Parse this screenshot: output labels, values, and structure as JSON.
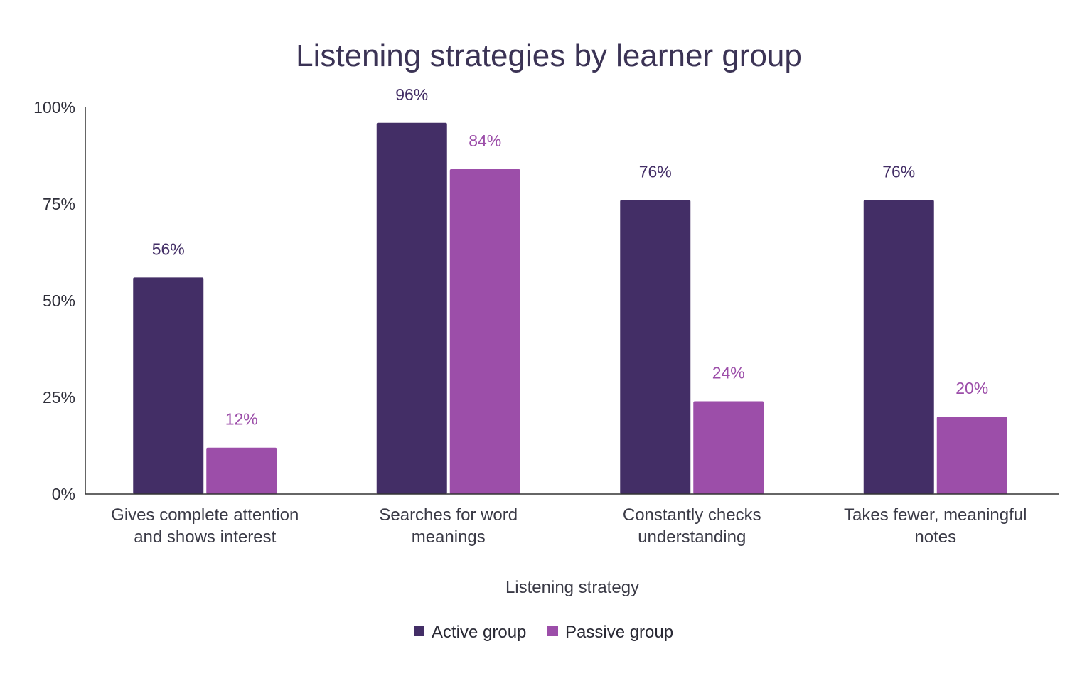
{
  "chart_data": {
    "type": "bar",
    "title": "Listening strategies by learner group",
    "xlabel": "Listening strategy",
    "ylabel": "",
    "ylim": [
      0,
      100
    ],
    "yticks": [
      "0%",
      "25%",
      "50%",
      "75%",
      "100%"
    ],
    "ytick_values": [
      0,
      25,
      50,
      75,
      100
    ],
    "categories": [
      [
        "Gives complete attention",
        "and shows interest"
      ],
      [
        "Searches for word",
        "meanings"
      ],
      [
        "Constantly checks",
        "understanding"
      ],
      [
        "Takes fewer, meaningful",
        "notes"
      ]
    ],
    "series": [
      {
        "name": "Active group",
        "color": "#432e66",
        "values": [
          56,
          96,
          76,
          76
        ],
        "labels": [
          "56%",
          "96%",
          "76%",
          "76%"
        ]
      },
      {
        "name": "Passive group",
        "color": "#9c4ea9",
        "values": [
          12,
          84,
          24,
          20
        ],
        "labels": [
          "12%",
          "84%",
          "24%",
          "20%"
        ]
      }
    ],
    "grid": false,
    "legend_position": "bottom"
  }
}
